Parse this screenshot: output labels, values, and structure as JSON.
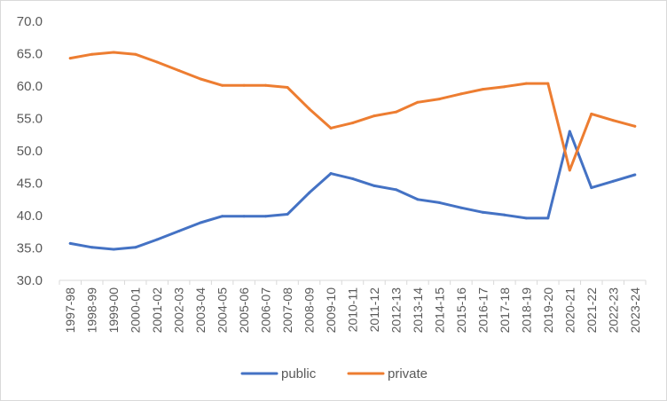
{
  "chart_data": {
    "type": "line",
    "categories": [
      "1997-98",
      "1998-99",
      "1999-00",
      "2000-01",
      "2001-02",
      "2002-03",
      "2003-04",
      "2004-05",
      "2005-06",
      "2006-07",
      "2007-08",
      "2008-09",
      "2009-10",
      "2010-11",
      "2011-12",
      "2012-13",
      "2013-14",
      "2014-15",
      "2015-16",
      "2016-17",
      "2017-18",
      "2018-19",
      "2019-20",
      "2020-21",
      "2021-22",
      "2022-23",
      "2023-24"
    ],
    "series": [
      {
        "name": "public",
        "color": "#4472c4",
        "values": [
          35.7,
          35.1,
          34.8,
          35.1,
          36.3,
          37.6,
          38.9,
          39.9,
          39.9,
          39.9,
          40.2,
          43.5,
          46.5,
          45.7,
          44.6,
          44.0,
          42.5,
          42.0,
          41.2,
          40.5,
          40.1,
          39.6,
          39.6,
          53.0,
          44.3,
          45.3,
          46.3
        ]
      },
      {
        "name": "private",
        "color": "#ed7d31",
        "values": [
          64.3,
          64.9,
          65.2,
          64.9,
          63.7,
          62.4,
          61.1,
          60.1,
          60.1,
          60.1,
          59.8,
          56.5,
          53.5,
          54.3,
          55.4,
          56.0,
          57.5,
          58.0,
          58.8,
          59.5,
          59.9,
          60.4,
          60.4,
          47.0,
          55.7,
          54.7,
          53.8
        ]
      }
    ],
    "ylim": [
      30,
      70
    ],
    "yticks": [
      "30.0",
      "35.0",
      "40.0",
      "45.0",
      "50.0",
      "55.0",
      "60.0",
      "65.0",
      "70.0"
    ],
    "grid": false,
    "legend_position": "bottom",
    "title": "",
    "xlabel": "",
    "ylabel": ""
  }
}
